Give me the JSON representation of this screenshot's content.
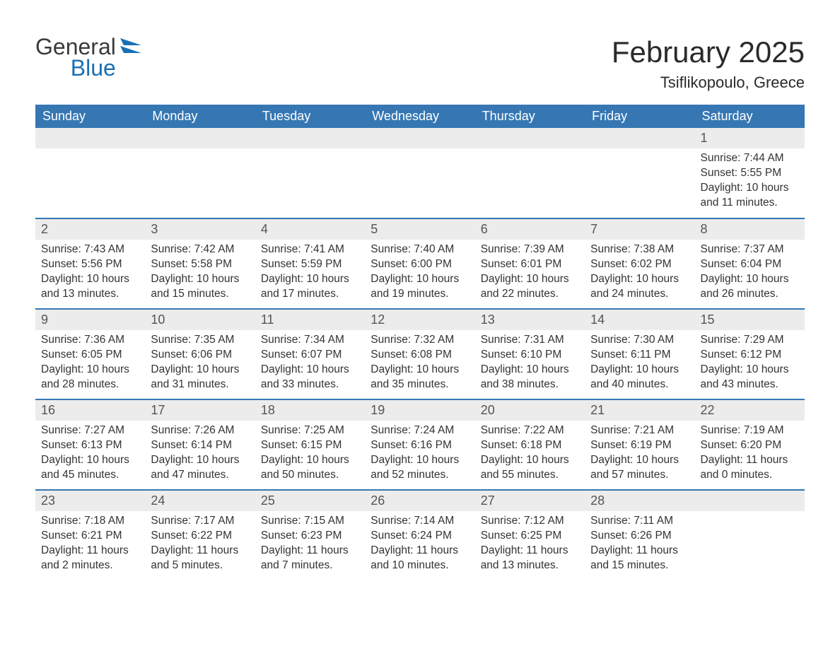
{
  "brand": {
    "line1": "General",
    "line2": "Blue"
  },
  "title": "February 2025",
  "location": "Tsiflikopoulo, Greece",
  "colors": {
    "header_bg": "#3677b3",
    "header_text": "#ffffff",
    "daynum_bg": "#ececec",
    "daynum_text": "#555555",
    "border": "#3677b3",
    "body_text": "#333333",
    "brand_gray": "#3a3a3a",
    "brand_blue": "#1a6fb3"
  },
  "weekdays": [
    "Sunday",
    "Monday",
    "Tuesday",
    "Wednesday",
    "Thursday",
    "Friday",
    "Saturday"
  ],
  "labels": {
    "sunrise": "Sunrise:",
    "sunset": "Sunset:",
    "daylight": "Daylight:"
  },
  "weeks": [
    [
      null,
      null,
      null,
      null,
      null,
      null,
      {
        "n": "1",
        "sunrise": "7:44 AM",
        "sunset": "5:55 PM",
        "daylight": "10 hours and 11 minutes."
      }
    ],
    [
      {
        "n": "2",
        "sunrise": "7:43 AM",
        "sunset": "5:56 PM",
        "daylight": "10 hours and 13 minutes."
      },
      {
        "n": "3",
        "sunrise": "7:42 AM",
        "sunset": "5:58 PM",
        "daylight": "10 hours and 15 minutes."
      },
      {
        "n": "4",
        "sunrise": "7:41 AM",
        "sunset": "5:59 PM",
        "daylight": "10 hours and 17 minutes."
      },
      {
        "n": "5",
        "sunrise": "7:40 AM",
        "sunset": "6:00 PM",
        "daylight": "10 hours and 19 minutes."
      },
      {
        "n": "6",
        "sunrise": "7:39 AM",
        "sunset": "6:01 PM",
        "daylight": "10 hours and 22 minutes."
      },
      {
        "n": "7",
        "sunrise": "7:38 AM",
        "sunset": "6:02 PM",
        "daylight": "10 hours and 24 minutes."
      },
      {
        "n": "8",
        "sunrise": "7:37 AM",
        "sunset": "6:04 PM",
        "daylight": "10 hours and 26 minutes."
      }
    ],
    [
      {
        "n": "9",
        "sunrise": "7:36 AM",
        "sunset": "6:05 PM",
        "daylight": "10 hours and 28 minutes."
      },
      {
        "n": "10",
        "sunrise": "7:35 AM",
        "sunset": "6:06 PM",
        "daylight": "10 hours and 31 minutes."
      },
      {
        "n": "11",
        "sunrise": "7:34 AM",
        "sunset": "6:07 PM",
        "daylight": "10 hours and 33 minutes."
      },
      {
        "n": "12",
        "sunrise": "7:32 AM",
        "sunset": "6:08 PM",
        "daylight": "10 hours and 35 minutes."
      },
      {
        "n": "13",
        "sunrise": "7:31 AM",
        "sunset": "6:10 PM",
        "daylight": "10 hours and 38 minutes."
      },
      {
        "n": "14",
        "sunrise": "7:30 AM",
        "sunset": "6:11 PM",
        "daylight": "10 hours and 40 minutes."
      },
      {
        "n": "15",
        "sunrise": "7:29 AM",
        "sunset": "6:12 PM",
        "daylight": "10 hours and 43 minutes."
      }
    ],
    [
      {
        "n": "16",
        "sunrise": "7:27 AM",
        "sunset": "6:13 PM",
        "daylight": "10 hours and 45 minutes."
      },
      {
        "n": "17",
        "sunrise": "7:26 AM",
        "sunset": "6:14 PM",
        "daylight": "10 hours and 47 minutes."
      },
      {
        "n": "18",
        "sunrise": "7:25 AM",
        "sunset": "6:15 PM",
        "daylight": "10 hours and 50 minutes."
      },
      {
        "n": "19",
        "sunrise": "7:24 AM",
        "sunset": "6:16 PM",
        "daylight": "10 hours and 52 minutes."
      },
      {
        "n": "20",
        "sunrise": "7:22 AM",
        "sunset": "6:18 PM",
        "daylight": "10 hours and 55 minutes."
      },
      {
        "n": "21",
        "sunrise": "7:21 AM",
        "sunset": "6:19 PM",
        "daylight": "10 hours and 57 minutes."
      },
      {
        "n": "22",
        "sunrise": "7:19 AM",
        "sunset": "6:20 PM",
        "daylight": "11 hours and 0 minutes."
      }
    ],
    [
      {
        "n": "23",
        "sunrise": "7:18 AM",
        "sunset": "6:21 PM",
        "daylight": "11 hours and 2 minutes."
      },
      {
        "n": "24",
        "sunrise": "7:17 AM",
        "sunset": "6:22 PM",
        "daylight": "11 hours and 5 minutes."
      },
      {
        "n": "25",
        "sunrise": "7:15 AM",
        "sunset": "6:23 PM",
        "daylight": "11 hours and 7 minutes."
      },
      {
        "n": "26",
        "sunrise": "7:14 AM",
        "sunset": "6:24 PM",
        "daylight": "11 hours and 10 minutes."
      },
      {
        "n": "27",
        "sunrise": "7:12 AM",
        "sunset": "6:25 PM",
        "daylight": "11 hours and 13 minutes."
      },
      {
        "n": "28",
        "sunrise": "7:11 AM",
        "sunset": "6:26 PM",
        "daylight": "11 hours and 15 minutes."
      },
      null
    ]
  ]
}
